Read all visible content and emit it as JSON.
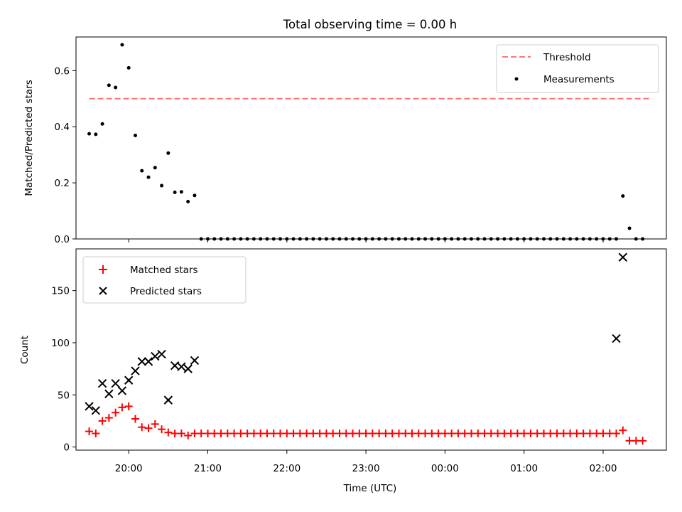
{
  "figure": {
    "title": "Total observing time = 0.00 h"
  },
  "chart_data": [
    {
      "type": "scatter",
      "name": "ratio-panel",
      "title": "Total observing time = 0.00 h",
      "xlabel": "",
      "ylabel": "Matched/Predicted stars",
      "xlim": [
        "19:20",
        "02:48"
      ],
      "ylim": [
        0,
        0.72
      ],
      "yticks": [
        0.0,
        0.2,
        0.4,
        0.6
      ],
      "ytick_labels": [
        "0.0",
        "0.2",
        "0.4",
        "0.6"
      ],
      "legend_position": "upper-right",
      "threshold": {
        "name": "Threshold",
        "value": 0.5,
        "x_start": "19:30",
        "x_end": "02:35",
        "color": "#ff7777",
        "style": "dashed"
      },
      "series": [
        {
          "name": "Measurements",
          "marker": "dot",
          "color": "#000000",
          "x": [
            "19:30",
            "19:35",
            "19:40",
            "19:45",
            "19:50",
            "19:55",
            "20:00",
            "20:05",
            "20:10",
            "20:15",
            "20:20",
            "20:25",
            "20:30",
            "20:35",
            "20:40",
            "20:45",
            "20:50",
            "20:55",
            "21:00",
            "21:05",
            "21:10",
            "21:15",
            "21:20",
            "21:25",
            "21:30",
            "21:35",
            "21:40",
            "21:45",
            "21:50",
            "21:55",
            "22:00",
            "22:05",
            "22:10",
            "22:15",
            "22:20",
            "22:25",
            "22:30",
            "22:35",
            "22:40",
            "22:45",
            "22:50",
            "22:55",
            "23:00",
            "23:05",
            "23:10",
            "23:15",
            "23:20",
            "23:25",
            "23:30",
            "23:35",
            "23:40",
            "23:45",
            "23:50",
            "23:55",
            "00:00",
            "00:05",
            "00:10",
            "00:15",
            "00:20",
            "00:25",
            "00:30",
            "00:35",
            "00:40",
            "00:45",
            "00:50",
            "00:55",
            "01:00",
            "01:05",
            "01:10",
            "01:15",
            "01:20",
            "01:25",
            "01:30",
            "01:35",
            "01:40",
            "01:45",
            "01:50",
            "01:55",
            "02:00",
            "02:05",
            "02:10",
            "02:15",
            "02:20",
            "02:25",
            "02:30"
          ],
          "y": [
            0.375,
            0.373,
            0.41,
            0.548,
            0.54,
            0.692,
            0.61,
            0.369,
            0.243,
            0.22,
            0.254,
            0.19,
            0.306,
            0.166,
            0.168,
            0.133,
            0.155,
            0,
            0,
            0,
            0,
            0,
            0,
            0,
            0,
            0,
            0,
            0,
            0,
            0,
            0,
            0,
            0,
            0,
            0,
            0,
            0,
            0,
            0,
            0,
            0,
            0,
            0,
            0,
            0,
            0,
            0,
            0,
            0,
            0,
            0,
            0,
            0,
            0,
            0,
            0,
            0,
            0,
            0,
            0,
            0,
            0,
            0,
            0,
            0,
            0,
            0,
            0,
            0,
            0,
            0,
            0,
            0,
            0,
            0,
            0,
            0,
            0,
            0,
            0,
            0,
            0.153,
            0.038,
            0,
            0
          ]
        }
      ]
    },
    {
      "type": "scatter",
      "name": "count-panel",
      "xlabel": "Time (UTC)",
      "ylabel": "Count",
      "xlim": [
        "19:20",
        "02:48"
      ],
      "ylim": [
        -3,
        190
      ],
      "xticks": [
        "20:00",
        "21:00",
        "22:00",
        "23:00",
        "00:00",
        "01:00",
        "02:00"
      ],
      "yticks": [
        0,
        50,
        100,
        150
      ],
      "ytick_labels": [
        "0",
        "50",
        "100",
        "150"
      ],
      "legend_position": "upper-left",
      "series": [
        {
          "name": "Matched stars",
          "marker": "plus",
          "color": "#ff0000",
          "x": [
            "19:30",
            "19:35",
            "19:40",
            "19:45",
            "19:50",
            "19:55",
            "20:00",
            "20:05",
            "20:10",
            "20:15",
            "20:20",
            "20:25",
            "20:30",
            "20:35",
            "20:40",
            "20:45",
            "20:50",
            "20:55",
            "21:00",
            "21:05",
            "21:10",
            "21:15",
            "21:20",
            "21:25",
            "21:30",
            "21:35",
            "21:40",
            "21:45",
            "21:50",
            "21:55",
            "22:00",
            "22:05",
            "22:10",
            "22:15",
            "22:20",
            "22:25",
            "22:30",
            "22:35",
            "22:40",
            "22:45",
            "22:50",
            "22:55",
            "23:00",
            "23:05",
            "23:10",
            "23:15",
            "23:20",
            "23:25",
            "23:30",
            "23:35",
            "23:40",
            "23:45",
            "23:50",
            "23:55",
            "00:00",
            "00:05",
            "00:10",
            "00:15",
            "00:20",
            "00:25",
            "00:30",
            "00:35",
            "00:40",
            "00:45",
            "00:50",
            "00:55",
            "01:00",
            "01:05",
            "01:10",
            "01:15",
            "01:20",
            "01:25",
            "01:30",
            "01:35",
            "01:40",
            "01:45",
            "01:50",
            "01:55",
            "02:00",
            "02:05",
            "02:10",
            "02:15",
            "02:20",
            "02:25",
            "02:30"
          ],
          "y": [
            15,
            13,
            25,
            28,
            33,
            38,
            39,
            27,
            19,
            18,
            22,
            17,
            14,
            13,
            13,
            11,
            13,
            13,
            13,
            13,
            13,
            13,
            13,
            13,
            13,
            13,
            13,
            13,
            13,
            13,
            13,
            13,
            13,
            13,
            13,
            13,
            13,
            13,
            13,
            13,
            13,
            13,
            13,
            13,
            13,
            13,
            13,
            13,
            13,
            13,
            13,
            13,
            13,
            13,
            13,
            13,
            13,
            13,
            13,
            13,
            13,
            13,
            13,
            13,
            13,
            13,
            13,
            13,
            13,
            13,
            13,
            13,
            13,
            13,
            13,
            13,
            13,
            13,
            13,
            13,
            13,
            16,
            6,
            6,
            6
          ]
        },
        {
          "name": "Predicted stars",
          "marker": "x",
          "color": "#000000",
          "x": [
            "19:30",
            "19:35",
            "19:40",
            "19:45",
            "19:50",
            "19:55",
            "20:00",
            "20:05",
            "20:10",
            "20:15",
            "20:20",
            "20:25",
            "20:30",
            "20:35",
            "20:40",
            "20:45",
            "20:50",
            "02:10",
            "02:15"
          ],
          "y": [
            39,
            35,
            61,
            51,
            61,
            54,
            64,
            73,
            82,
            82,
            87,
            89,
            45,
            78,
            77,
            75,
            83,
            104,
            182
          ]
        }
      ]
    }
  ]
}
